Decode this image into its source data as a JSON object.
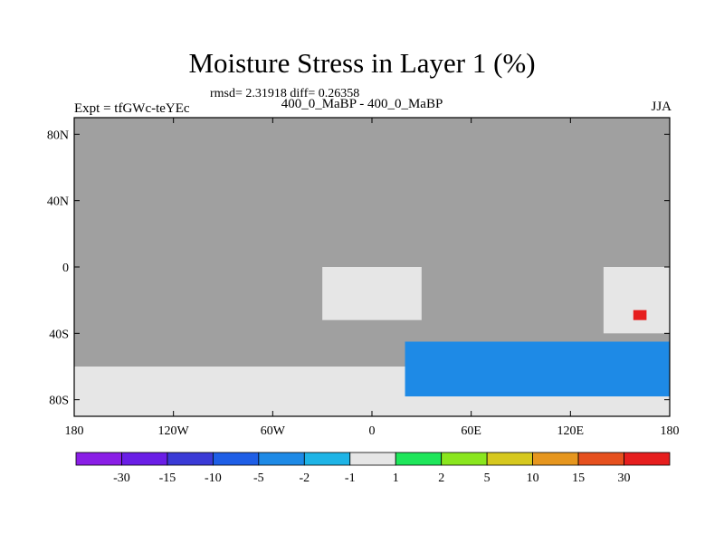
{
  "header": {
    "title": "Moisture Stress in Layer 1 (%)",
    "stats": "rmsd= 2.31918 diff= 0.26358",
    "expt": "Expt = tfGWc-teYEc",
    "case": "400_0_MaBP - 400_0_MaBP",
    "season": "JJA"
  },
  "chart_data": {
    "type": "heatmap",
    "title": "Moisture Stress in Layer 1 (%)",
    "xlim": [
      -180,
      180
    ],
    "ylim": [
      -90,
      90
    ],
    "x_ticks": [
      {
        "value": -180,
        "label": "180"
      },
      {
        "value": -120,
        "label": "120W"
      },
      {
        "value": -60,
        "label": "60W"
      },
      {
        "value": 0,
        "label": "0"
      },
      {
        "value": 60,
        "label": "60E"
      },
      {
        "value": 120,
        "label": "120E"
      },
      {
        "value": 180,
        "label": "180"
      }
    ],
    "y_ticks": [
      {
        "value": 80,
        "label": "80N"
      },
      {
        "value": 40,
        "label": "40N"
      },
      {
        "value": 0,
        "label": "0"
      },
      {
        "value": -40,
        "label": "40S"
      },
      {
        "value": -80,
        "label": "80S"
      }
    ],
    "background_color": "#a0a0a0",
    "colorbar": {
      "colors": [
        "#8a1ee6",
        "#6a1ee6",
        "#3a3ad6",
        "#1e5ee6",
        "#1e8ae6",
        "#1eb4e6",
        "#e6e6e6",
        "#1ee65a",
        "#8ae61e",
        "#d6c81e",
        "#e6961e",
        "#e6501e",
        "#e61e1e"
      ],
      "labels": [
        "-30",
        "-15",
        "-10",
        "-5",
        "-2",
        "-1",
        "1",
        "2",
        "5",
        "10",
        "15",
        "30"
      ]
    },
    "regions": [
      {
        "name": "antarctic-band",
        "lon": [
          -180,
          180
        ],
        "lat": [
          -90,
          -60
        ],
        "fill": "#e6e6e6"
      },
      {
        "name": "africa-north",
        "lon": [
          -30,
          30
        ],
        "lat": [
          -32,
          0
        ],
        "fill": "#e6e6e6"
      },
      {
        "name": "southern-ocean-blue",
        "lon": [
          20,
          180
        ],
        "lat": [
          -78,
          -45
        ],
        "fill": "#1e8ae6"
      },
      {
        "name": "australia-east",
        "lon": [
          140,
          180
        ],
        "lat": [
          -40,
          0
        ],
        "fill": "#e6e6e6"
      },
      {
        "name": "hotspot-red",
        "lon": [
          158,
          166
        ],
        "lat": [
          -32,
          -26
        ],
        "fill": "#e61e1e"
      }
    ]
  }
}
